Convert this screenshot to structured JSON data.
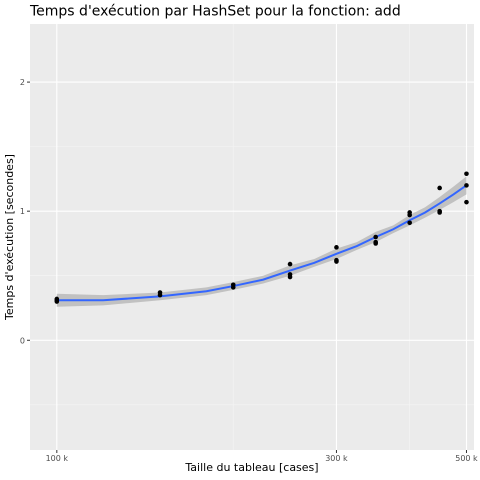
{
  "chart_data": {
    "type": "scatter",
    "title": "Temps d'exécution par HashSet pour la fonction: add",
    "xlabel": "Taille du tableau [cases]",
    "ylabel": "Temps d'exécution [secondes]",
    "xlim": [
      90000,
      515000
    ],
    "ylim": [
      -0.85,
      2.45
    ],
    "xscale": "log",
    "x_ticks": [
      {
        "value": 100000,
        "label": "100 k"
      },
      {
        "value": 300000,
        "label": "300 k"
      },
      {
        "value": 500000,
        "label": "500 k"
      }
    ],
    "x_minor_ticks": [
      200000,
      400000
    ],
    "y_ticks": [
      {
        "value": 0,
        "label": "0"
      },
      {
        "value": 1,
        "label": "1"
      },
      {
        "value": 2,
        "label": "2"
      }
    ],
    "grid": true,
    "points": [
      {
        "x": 100000,
        "y": 0.31
      },
      {
        "x": 100000,
        "y": 0.3
      },
      {
        "x": 100000,
        "y": 0.32
      },
      {
        "x": 150000,
        "y": 0.37
      },
      {
        "x": 150000,
        "y": 0.35
      },
      {
        "x": 200000,
        "y": 0.43
      },
      {
        "x": 200000,
        "y": 0.41
      },
      {
        "x": 250000,
        "y": 0.59
      },
      {
        "x": 250000,
        "y": 0.51
      },
      {
        "x": 250000,
        "y": 0.49
      },
      {
        "x": 300000,
        "y": 0.72
      },
      {
        "x": 300000,
        "y": 0.62
      },
      {
        "x": 300000,
        "y": 0.61
      },
      {
        "x": 350000,
        "y": 0.8
      },
      {
        "x": 350000,
        "y": 0.76
      },
      {
        "x": 350000,
        "y": 0.75
      },
      {
        "x": 400000,
        "y": 0.99
      },
      {
        "x": 400000,
        "y": 0.97
      },
      {
        "x": 400000,
        "y": 0.91
      },
      {
        "x": 450000,
        "y": 1.18
      },
      {
        "x": 450000,
        "y": 1.0
      },
      {
        "x": 450000,
        "y": 0.99
      },
      {
        "x": 500000,
        "y": 1.29
      },
      {
        "x": 500000,
        "y": 1.2
      },
      {
        "x": 500000,
        "y": 1.07
      }
    ],
    "smooth": {
      "x": [
        100000,
        120000,
        150000,
        180000,
        200000,
        225000,
        250000,
        275000,
        300000,
        325000,
        350000,
        375000,
        400000,
        425000,
        450000,
        475000,
        500000
      ],
      "y": [
        0.31,
        0.31,
        0.34,
        0.38,
        0.42,
        0.47,
        0.54,
        0.6,
        0.67,
        0.73,
        0.8,
        0.86,
        0.93,
        0.99,
        1.06,
        1.13,
        1.2
      ],
      "ci_lower": [
        0.26,
        0.27,
        0.31,
        0.35,
        0.39,
        0.44,
        0.5,
        0.57,
        0.63,
        0.7,
        0.76,
        0.83,
        0.89,
        0.95,
        1.01,
        1.07,
        1.13
      ],
      "ci_upper": [
        0.36,
        0.35,
        0.37,
        0.41,
        0.45,
        0.5,
        0.58,
        0.63,
        0.71,
        0.76,
        0.84,
        0.89,
        0.97,
        1.03,
        1.11,
        1.19,
        1.27
      ]
    },
    "colors": {
      "panel": "#ebebeb",
      "grid_major": "#ffffff",
      "grid_minor": "#f5f5f5",
      "point": "#000000",
      "line": "#3366ff",
      "ribbon": "#b3b3b3"
    }
  }
}
